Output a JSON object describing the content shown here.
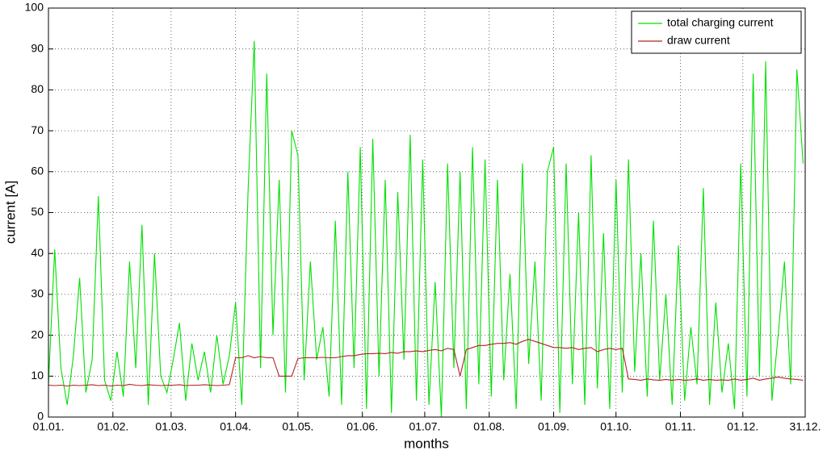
{
  "chart_data": {
    "type": "line",
    "xlabel": "months",
    "ylabel": "current [A]",
    "x": [
      0,
      3,
      6,
      9,
      12,
      15,
      18,
      21,
      24,
      27,
      30,
      33,
      36,
      39,
      42,
      45,
      48,
      51,
      54,
      57,
      60,
      63,
      66,
      69,
      72,
      75,
      78,
      81,
      84,
      87,
      90,
      93,
      96,
      99,
      102,
      105,
      108,
      111,
      114,
      117,
      120,
      123,
      126,
      129,
      132,
      135,
      138,
      141,
      144,
      147,
      150,
      153,
      156,
      159,
      162,
      165,
      168,
      171,
      174,
      177,
      180,
      183,
      186,
      189,
      192,
      195,
      198,
      201,
      204,
      207,
      210,
      213,
      216,
      219,
      222,
      225,
      228,
      231,
      234,
      237,
      240,
      243,
      246,
      249,
      252,
      255,
      258,
      261,
      264,
      267,
      270,
      273,
      276,
      279,
      282,
      285,
      288,
      291,
      294,
      297,
      300,
      303,
      306,
      309,
      312,
      315,
      318,
      321,
      324,
      327,
      330,
      333,
      336,
      339,
      342,
      345,
      348,
      351,
      354,
      357,
      360,
      363
    ],
    "series": [
      {
        "name": "total charging current",
        "color": "#00e000",
        "values": [
          8,
          41,
          12,
          3,
          15,
          34,
          6,
          14,
          54,
          9,
          4,
          16,
          5,
          38,
          12,
          47,
          3,
          40,
          10,
          6,
          14,
          23,
          4,
          18,
          9,
          16,
          6,
          20,
          8,
          15,
          28,
          3,
          55,
          92,
          12,
          84,
          20,
          58,
          6,
          70,
          64,
          9,
          38,
          14,
          22,
          5,
          48,
          3,
          60,
          12,
          66,
          2,
          68,
          10,
          58,
          1,
          55,
          14,
          69,
          4,
          63,
          3,
          33,
          0,
          62,
          12,
          60,
          2,
          66,
          8,
          63,
          5,
          58,
          9,
          35,
          2,
          62,
          13,
          38,
          4,
          60,
          66,
          1,
          62,
          8,
          50,
          3,
          64,
          7,
          45,
          2,
          58,
          6,
          63,
          11,
          40,
          5,
          48,
          9,
          30,
          3,
          42,
          4,
          22,
          8,
          56,
          3,
          28,
          6,
          18,
          2,
          62,
          5,
          84,
          10,
          87,
          4,
          20,
          38,
          8,
          85,
          62
        ]
      },
      {
        "name": "draw current",
        "color": "#b22222",
        "values": [
          7.8,
          7.7,
          7.8,
          7.6,
          7.8,
          7.7,
          7.8,
          7.9,
          7.7,
          7.8,
          7.6,
          7.8,
          7.7,
          8,
          7.8,
          7.7,
          7.9,
          7.8,
          7.7,
          7.8,
          7.8,
          7.9,
          7.7,
          7.8,
          7.8,
          7.9,
          7.8,
          7.7,
          7.8,
          7.9,
          14.5,
          14.5,
          15,
          14.5,
          14.8,
          14.5,
          14.5,
          10,
          10,
          10,
          14.3,
          14.5,
          14.5,
          14.5,
          14.6,
          14.5,
          14.5,
          14.8,
          15,
          15,
          15.3,
          15.5,
          15.5,
          15.6,
          15.5,
          15.8,
          15.6,
          16,
          16,
          16.2,
          16,
          16.3,
          16.5,
          16.2,
          16.8,
          16.5,
          10,
          16.5,
          17,
          17.5,
          17.5,
          17.8,
          18,
          18,
          18.2,
          17.8,
          18.5,
          19,
          18.5,
          18,
          17.5,
          17,
          17,
          16.8,
          17,
          16.5,
          16.8,
          17,
          16,
          16.5,
          16.8,
          16.5,
          16.8,
          9.3,
          9.2,
          9,
          9.3,
          9.1,
          9,
          9.2,
          9,
          9.2,
          9,
          9.1,
          9.3,
          9,
          9.2,
          9,
          9.1,
          9,
          9.3,
          9,
          9.2,
          9.5,
          9,
          9.3,
          9.5,
          9.8,
          9.5,
          9.3,
          9.2,
          9
        ]
      }
    ],
    "xlim": [
      0,
      364
    ],
    "xticks": [
      {
        "value": 0,
        "label": "01.01."
      },
      {
        "value": 31,
        "label": "01.02."
      },
      {
        "value": 59,
        "label": "01.03."
      },
      {
        "value": 90,
        "label": "01.04."
      },
      {
        "value": 120,
        "label": "01.05."
      },
      {
        "value": 151,
        "label": "01.06."
      },
      {
        "value": 181,
        "label": "01.07."
      },
      {
        "value": 212,
        "label": "01.08."
      },
      {
        "value": 243,
        "label": "01.09."
      },
      {
        "value": 273,
        "label": "01.10."
      },
      {
        "value": 304,
        "label": "01.11."
      },
      {
        "value": 334,
        "label": "01.12."
      },
      {
        "value": 364,
        "label": "31.12."
      }
    ],
    "ylim": [
      0,
      100
    ],
    "yticks": [
      0,
      10,
      20,
      30,
      40,
      50,
      60,
      70,
      80,
      90,
      100
    ],
    "grid": true,
    "legend": "top-right"
  }
}
